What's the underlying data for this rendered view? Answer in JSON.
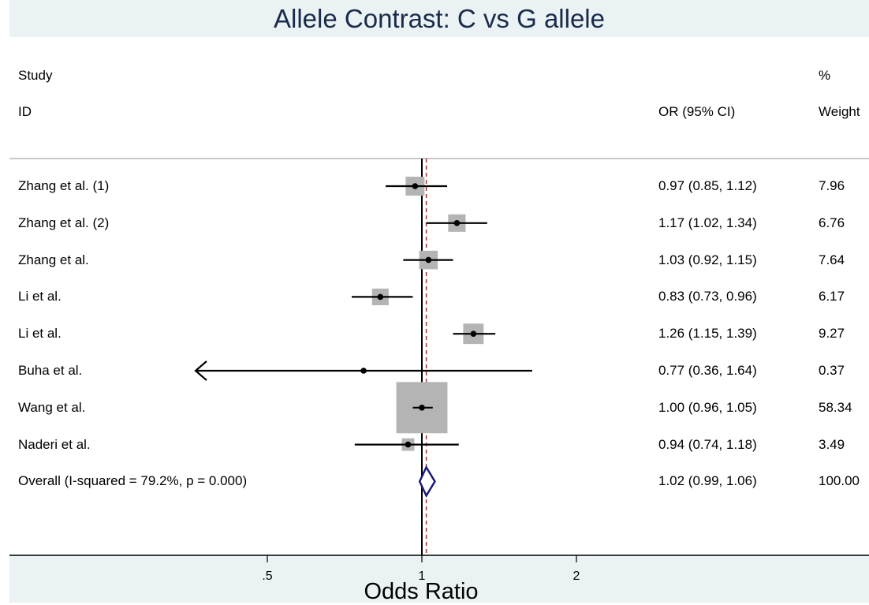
{
  "chart_data": {
    "type": "forest",
    "title": "Allele Contrast: C vs G allele",
    "xlabel": "Odds Ratio",
    "x_scale": "log",
    "reference_line": 1,
    "overall_line": 1.02,
    "x_ticks": [
      {
        "value": 0.5,
        "label": ".5"
      },
      {
        "value": 1,
        "label": "1"
      },
      {
        "value": 2,
        "label": "2"
      }
    ],
    "headers": {
      "study_top": "Study",
      "study_bottom": "ID",
      "or_ci": "OR (95% CI)",
      "weight_top": "%",
      "weight_bottom": "Weight"
    },
    "studies": [
      {
        "label": "Zhang et al. (1)",
        "or": 0.97,
        "lower": 0.85,
        "upper": 1.12,
        "ci_text": "0.97 (0.85, 1.12)",
        "weight": 7.96,
        "weight_text": "7.96"
      },
      {
        "label": "Zhang et al. (2)",
        "or": 1.17,
        "lower": 1.02,
        "upper": 1.34,
        "ci_text": "1.17 (1.02, 1.34)",
        "weight": 6.76,
        "weight_text": "6.76"
      },
      {
        "label": "Zhang et al.",
        "or": 1.03,
        "lower": 0.92,
        "upper": 1.15,
        "ci_text": "1.03 (0.92, 1.15)",
        "weight": 7.64,
        "weight_text": "7.64"
      },
      {
        "label": "Li et al.",
        "or": 0.83,
        "lower": 0.73,
        "upper": 0.96,
        "ci_text": "0.83 (0.73, 0.96)",
        "weight": 6.17,
        "weight_text": "6.17"
      },
      {
        "label": "Li et al.",
        "or": 1.26,
        "lower": 1.15,
        "upper": 1.39,
        "ci_text": "1.26 (1.15, 1.39)",
        "weight": 9.27,
        "weight_text": "9.27"
      },
      {
        "label": "Buha et al.",
        "or": 0.77,
        "lower": 0.36,
        "upper": 1.64,
        "ci_text": "0.77 (0.36, 1.64)",
        "weight": 0.37,
        "weight_text": "0.37",
        "lower_clipped": true
      },
      {
        "label": "Wang et al.",
        "or": 1.0,
        "lower": 0.96,
        "upper": 1.05,
        "ci_text": "1.00 (0.96, 1.05)",
        "weight": 58.34,
        "weight_text": "58.34"
      },
      {
        "label": "Naderi et al.",
        "or": 0.94,
        "lower": 0.74,
        "upper": 1.18,
        "ci_text": "0.94 (0.74, 1.18)",
        "weight": 3.49,
        "weight_text": "3.49"
      }
    ],
    "overall": {
      "label": "Overall  (I-squared = 79.2%, p = 0.000)",
      "or": 1.02,
      "lower": 0.99,
      "upper": 1.06,
      "ci_text": "1.02 (0.99, 1.06)",
      "weight_text": "100.00"
    },
    "colors": {
      "box": "#b4b4b4",
      "diamond": "#1a1a7a",
      "overall_line": "#b03030",
      "title": "#1a2a4a",
      "band": "#eaf2f3"
    }
  }
}
